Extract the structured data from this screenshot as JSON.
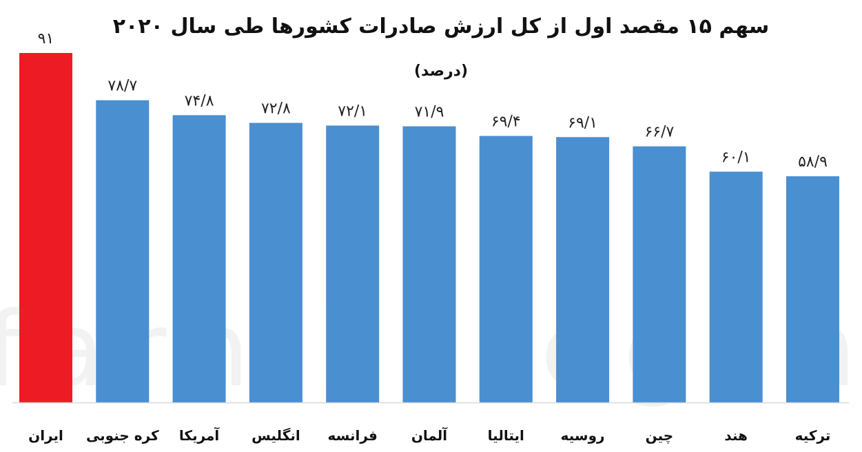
{
  "chart_data": {
    "type": "bar",
    "title": "سهم ۱۵ مقصد اول از کل ارزش صادرات کشورها طی سال ۲۰۲۰",
    "subtitle": "(درصد)",
    "xlabel": "",
    "ylabel": "",
    "ylim": [
      0,
      91
    ],
    "grid": false,
    "legend": "none",
    "categories": [
      "ایران",
      "کره جنوبی",
      "آمریکا",
      "انگلیس",
      "فرانسه",
      "آلمان",
      "ایتالیا",
      "روسیه",
      "چین",
      "هند",
      "ترکیه"
    ],
    "values": [
      91,
      78.7,
      74.8,
      72.8,
      72.1,
      71.9,
      69.4,
      69.1,
      66.7,
      60.1,
      58.9
    ],
    "value_labels": [
      "۹۱",
      "۷۸/۷",
      "۷۴/۸",
      "۷۲/۸",
      "۷۲/۱",
      "۷۱/۹",
      "۶۹/۴",
      "۶۹/۱",
      "۶۶/۷",
      "۶۰/۱",
      "۵۸/۹"
    ],
    "colors": [
      "#ED1C24",
      "#4A8FD0",
      "#4A8FD0",
      "#4A8FD0",
      "#4A8FD0",
      "#4A8FD0",
      "#4A8FD0",
      "#4A8FD0",
      "#4A8FD0",
      "#4A8FD0",
      "#4A8FD0"
    ],
    "axis_color": "#d9d9d9"
  },
  "watermark": "farhikhtegan"
}
